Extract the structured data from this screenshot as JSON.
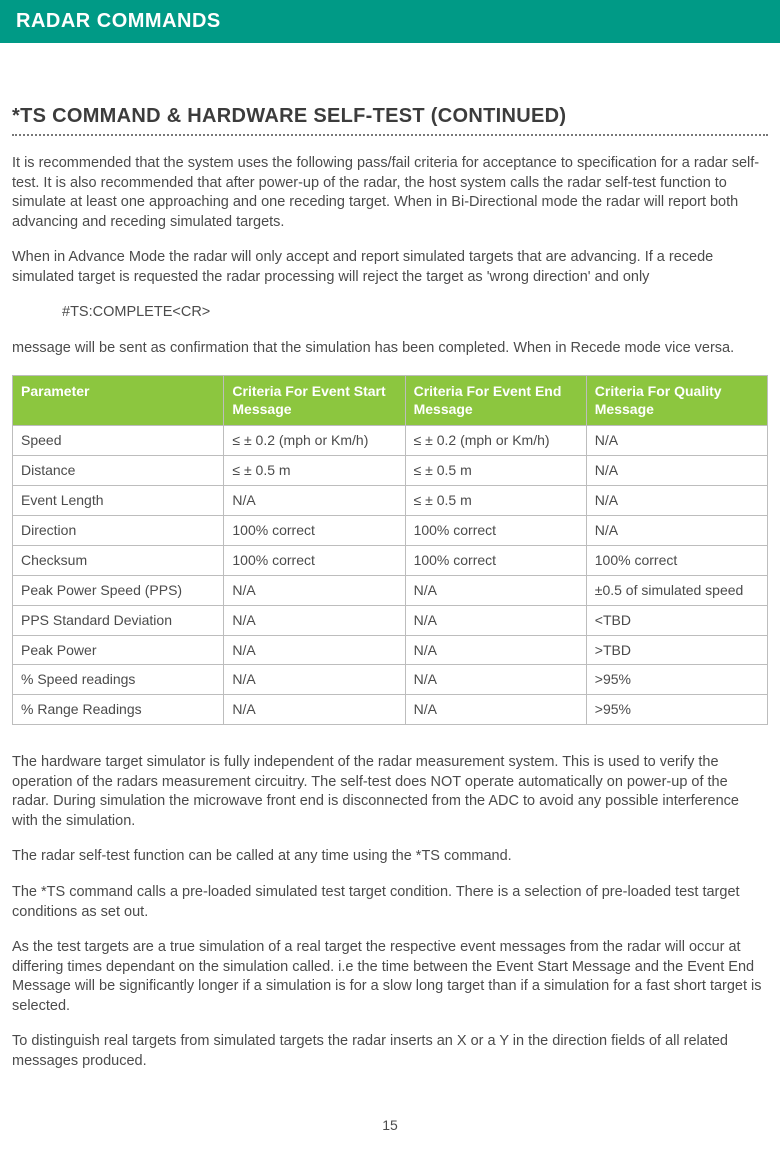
{
  "header": {
    "title": "RADAR COMMANDS"
  },
  "section": {
    "subtitle": "*TS COMMAND & HARDWARE SELF-TEST (CONTINUED)"
  },
  "paras": {
    "p1": "It is recommended that the system uses the following pass/fail criteria for acceptance to specification for a radar self-test. It is also recommended that after power-up of the radar, the host system calls the radar self-test function to simulate at least one approaching and one receding target. When in Bi-Directional mode the radar will report both advancing and receding simulated targets.",
    "p2": "When in Advance Mode the radar will only accept and report simulated targets that are advancing. If a recede simulated target is requested the radar processing will reject the target as 'wrong direction' and only",
    "code": "#TS:COMPLETE<CR>",
    "p3": "message will be sent as confirmation that the simulation has been completed. When in Recede mode vice versa.",
    "p4": "The hardware target simulator is fully independent of the radar measurement system. This is used to verify the operation of the radars measurement circuitry. The self-test does NOT operate automatically on power-up of the radar. During simulation the microwave front end is disconnected from the ADC to avoid any possible interference with the simulation.",
    "p5": "The radar self-test function can be called at any time using the *TS command.",
    "p6": "The *TS command calls a pre-loaded simulated test target condition. There is a selection of pre-loaded test target conditions as set out.",
    "p7": "As the test targets are a true simulation of a real target the respective event messages from the radar will occur at differing times dependant on the simulation called. i.e the time between the Event Start Message and the Event End Message will be significantly longer if  a simulation is for a slow long target than if a simulation for a fast short target is selected.",
    "p8": "To distinguish real targets from simulated targets the radar inserts an X or a Y in the direction fields of all related messages produced."
  },
  "table": {
    "columns": [
      "Parameter",
      "Criteria For Event Start Message",
      "Criteria For Event End Message",
      "Criteria For Quality Message"
    ],
    "rows": [
      [
        "Speed",
        "≤ ± 0.2 (mph or Km/h)",
        "≤ ± 0.2 (mph or Km/h)",
        "N/A"
      ],
      [
        "Distance",
        "≤ ± 0.5 m",
        "≤ ± 0.5 m",
        "N/A"
      ],
      [
        "Event Length",
        "N/A",
        "≤ ± 0.5 m",
        "N/A"
      ],
      [
        "Direction",
        "100% correct",
        "100% correct",
        "N/A"
      ],
      [
        "Checksum",
        "100% correct",
        "100% correct",
        "100% correct"
      ],
      [
        "Peak Power Speed (PPS)",
        "N/A",
        "N/A",
        "±0.5 of simulated speed"
      ],
      [
        "PPS Standard Deviation",
        "N/A",
        "N/A",
        "<TBD"
      ],
      [
        "Peak Power",
        "N/A",
        "N/A",
        ">TBD"
      ],
      [
        "% Speed readings",
        "N/A",
        "N/A",
        ">95%"
      ],
      [
        "% Range Readings",
        "N/A",
        "N/A",
        ">95%"
      ]
    ],
    "header_bg": "#8cc63f",
    "header_color": "#ffffff",
    "border_color": "#bdbdbd",
    "cell_color": "#4b4b4b"
  },
  "page": {
    "number": "15"
  }
}
